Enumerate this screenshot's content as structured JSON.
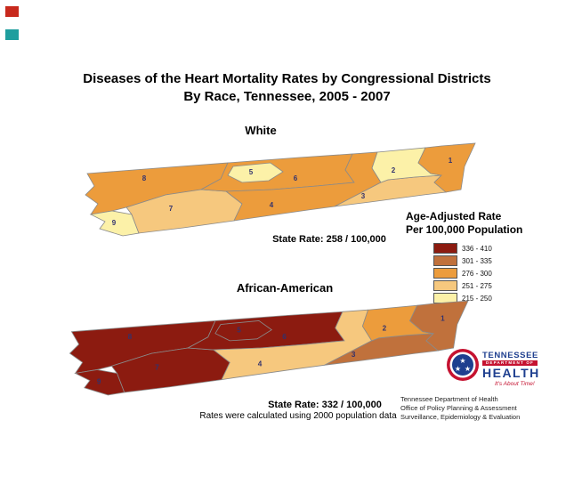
{
  "page": {
    "title_line1": "Diseases of the Heart Mortality Rates by Congressional Districts",
    "title_line2": "By Race, Tennessee, 2005 - 2007"
  },
  "legend": {
    "title_line1": "Age-Adjusted Rate",
    "title_line2": "Per 100,000 Population",
    "items": [
      {
        "label": "336 - 410",
        "color": "#8C1B10"
      },
      {
        "label": "301 - 335",
        "color": "#C0713C"
      },
      {
        "label": "276 - 300",
        "color": "#EC9C3C"
      },
      {
        "label": "251 - 275",
        "color": "#F6C87E"
      },
      {
        "label": "215 - 250",
        "color": "#FCF1A8"
      }
    ]
  },
  "maps": [
    {
      "id": "white",
      "title": "White",
      "state_rate": "State Rate: 258 / 100,000",
      "districts": [
        {
          "district": "1",
          "range": "276 - 300"
        },
        {
          "district": "2",
          "range": "215 - 250"
        },
        {
          "district": "3",
          "range": "251 - 275"
        },
        {
          "district": "4",
          "range": "276 - 300"
        },
        {
          "district": "5",
          "range": "215 - 250"
        },
        {
          "district": "6",
          "range": "276 - 300"
        },
        {
          "district": "7",
          "range": "251 - 275"
        },
        {
          "district": "8",
          "range": "276 - 300"
        },
        {
          "district": "9",
          "range": "215 - 250"
        }
      ]
    },
    {
      "id": "african_american",
      "title": "African-American",
      "state_rate": "State Rate: 332 / 100,000",
      "districts": [
        {
          "district": "1",
          "range": "301 - 335"
        },
        {
          "district": "2",
          "range": "276 - 300"
        },
        {
          "district": "3",
          "range": "301 - 335"
        },
        {
          "district": "4",
          "range": "251 - 275"
        },
        {
          "district": "5",
          "range": "336 - 410"
        },
        {
          "district": "6",
          "range": "336 - 410"
        },
        {
          "district": "7",
          "range": "336 - 410"
        },
        {
          "district": "8",
          "range": "336 - 410"
        },
        {
          "district": "9",
          "range": "336 - 410"
        }
      ]
    }
  ],
  "footnote": "Rates were calculated using 2000 population data",
  "logo": {
    "name_top": "TENNESSEE",
    "bar_text": "DEPARTMENT OF",
    "name_bottom": "HEALTH",
    "tagline": "It's About Time!"
  },
  "credits": [
    "Tennessee Department of Health",
    "Office of Policy Planning & Assessment",
    "Surveillance, Epidemiology & Evaluation"
  ]
}
